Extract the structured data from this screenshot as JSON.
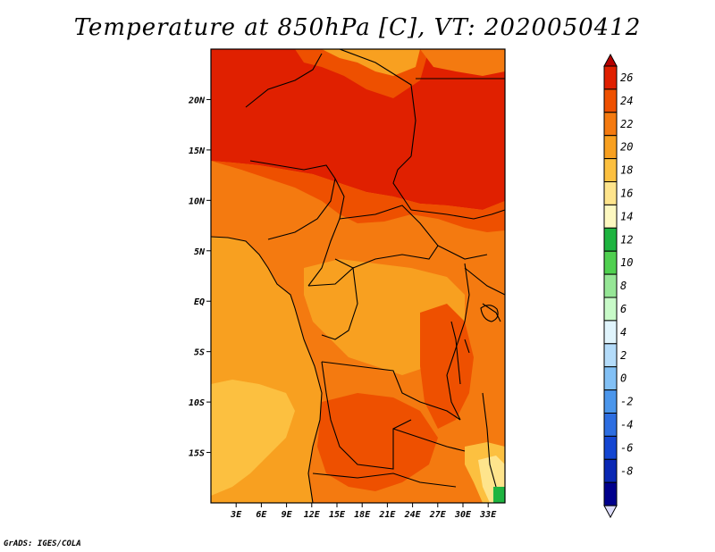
{
  "title": "Temperature at 850hPa [C], VT: 2020050412",
  "credit": "GrADS: IGES/COLA",
  "map": {
    "lat_labels": [
      "20N",
      "15N",
      "10N",
      "5N",
      "EQ",
      "5S",
      "10S",
      "15S"
    ],
    "lon_labels": [
      "3E",
      "6E",
      "9E",
      "12E",
      "15E",
      "18E",
      "21E",
      "24E",
      "27E",
      "30E",
      "33E"
    ],
    "lat_values": [
      20,
      15,
      10,
      5,
      0,
      -5,
      -10,
      -15
    ],
    "lon_values": [
      3,
      6,
      9,
      12,
      15,
      18,
      21,
      24,
      27,
      30,
      33
    ],
    "extent": {
      "lon_min": 0,
      "lon_max": 35,
      "lat_min": -20,
      "lat_max": 25
    }
  },
  "colorbar": {
    "labels": [
      "26",
      "24",
      "22",
      "20",
      "18",
      "16",
      "14",
      "12",
      "10",
      "8",
      "6",
      "4",
      "2",
      "0",
      "-2",
      "-4",
      "-6",
      "-8"
    ],
    "colors": [
      "#b40000",
      "#e02000",
      "#ee5000",
      "#f47a10",
      "#f8a020",
      "#fcc040",
      "#fee48c",
      "#fdf8c0",
      "#1eb440",
      "#50d050",
      "#96e696",
      "#c8fac8",
      "#e0f4fc",
      "#b4dcfa",
      "#82c0f5",
      "#4b96eb",
      "#2d6ee1",
      "#1446d2",
      "#0a28b4",
      "#00008c",
      "#dcdcfa"
    ]
  }
}
